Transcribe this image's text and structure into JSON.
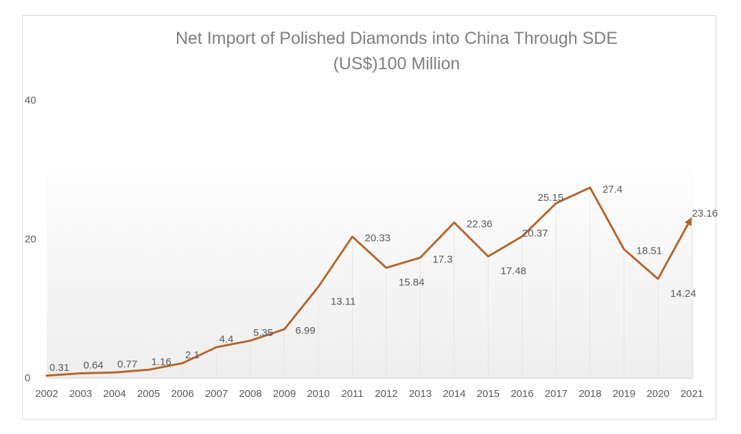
{
  "chart_data": {
    "type": "line",
    "title_lines": [
      "Net Import of Polished Diamonds into China Through SDE",
      "(US$)100 Million"
    ],
    "categories": [
      "2002",
      "2003",
      "2004",
      "2005",
      "2006",
      "2007",
      "2008",
      "2009",
      "2010",
      "2011",
      "2012",
      "2013",
      "2014",
      "2015",
      "2016",
      "2017",
      "2018",
      "2019",
      "2020",
      "2021"
    ],
    "values": [
      0.31,
      0.64,
      0.77,
      1.16,
      2.1,
      4.4,
      5.35,
      6.99,
      13.11,
      20.33,
      15.84,
      17.3,
      22.36,
      17.48,
      20.37,
      25.15,
      27.4,
      18.51,
      14.24,
      23.16
    ],
    "data_labels": [
      "0.31",
      "0.64",
      "0.77",
      "1.16",
      "2.1",
      "4.4",
      "5.35",
      "6.99",
      "13.11",
      "20.33",
      "15.84",
      "17.3",
      "22.36",
      "17.48",
      "20.37",
      "25.15",
      "27.4",
      "18.51",
      "14.24",
      "23.16"
    ],
    "ylim": [
      0,
      40
    ],
    "yticks": [
      "0",
      "20",
      "40"
    ],
    "xlabel": "",
    "ylabel": "",
    "grid": "vertical",
    "line_color": "#b5652a",
    "end_marker": "arrow"
  }
}
